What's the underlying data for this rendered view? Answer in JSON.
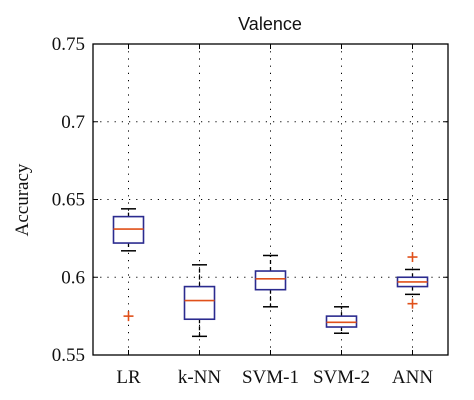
{
  "chart_data": {
    "type": "box",
    "title": "Valence",
    "xlabel": "",
    "ylabel": "Accuracy",
    "ylim": [
      0.55,
      0.75
    ],
    "yticks": [
      "0.55",
      "0.6",
      "0.65",
      "0.7",
      "0.75"
    ],
    "ytick_values": [
      0.55,
      0.6,
      0.65,
      0.7,
      0.75
    ],
    "grid": true,
    "categories": [
      "LR",
      "k-NN",
      "SVM-1",
      "SVM-2",
      "ANN"
    ],
    "boxes": [
      {
        "whisker_low": 0.617,
        "q1": 0.622,
        "median": 0.631,
        "q3": 0.639,
        "whisker_high": 0.644,
        "outliers": [
          0.575
        ]
      },
      {
        "whisker_low": 0.562,
        "q1": 0.573,
        "median": 0.585,
        "q3": 0.594,
        "whisker_high": 0.608,
        "outliers": []
      },
      {
        "whisker_low": 0.581,
        "q1": 0.592,
        "median": 0.599,
        "q3": 0.604,
        "whisker_high": 0.614,
        "outliers": []
      },
      {
        "whisker_low": 0.564,
        "q1": 0.568,
        "median": 0.571,
        "q3": 0.575,
        "whisker_high": 0.581,
        "outliers": []
      },
      {
        "whisker_low": 0.589,
        "q1": 0.594,
        "median": 0.597,
        "q3": 0.6,
        "whisker_high": 0.605,
        "outliers": [
          0.613,
          0.583
        ]
      }
    ],
    "colors": {
      "box": "#2b2b8f",
      "median": "#e0501a",
      "outlier": "#e0501a",
      "whisker": "#000000",
      "grid": "#000000"
    }
  }
}
